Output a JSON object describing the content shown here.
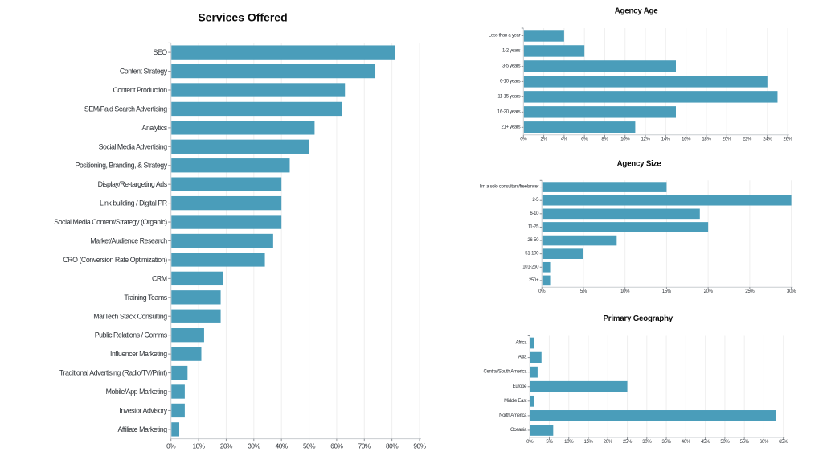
{
  "page": {
    "background": "#ffffff"
  },
  "colors": {
    "bar": "#4a9dba",
    "axis_line": "#c9cdd1",
    "grid_line": "#efefef",
    "tick_mark": "#8b9096",
    "label_text": "#2e3237",
    "title_text": "#0c0c0c"
  },
  "chart_data": [
    {
      "id": "services_offered",
      "type": "bar",
      "orientation": "horizontal",
      "title": "Services Offered",
      "categories": [
        "SEO",
        "Content Strategy",
        "Content Production",
        "SEM/Paid Search Advertising",
        "Analytics",
        "Social Media Advertising",
        "Positioning, Branding, & Strategy",
        "Display/Re-targeting Ads",
        "Link building / Digital PR",
        "Social Media Content/Strategy (Organic)",
        "Market/Audience Research",
        "CRO (Conversion Rate Optimization)",
        "CRM",
        "Training Teams",
        "MarTech Stack Consulting",
        "Public Relations / Comms",
        "Influencer Marketing",
        "Traditional Advertising (Radio/TV/Print)",
        "Mobile/App Marketing",
        "Investor Advisory",
        "Affiliate Marketing"
      ],
      "values": [
        81,
        74,
        63,
        62,
        52,
        50,
        43,
        40,
        40,
        40,
        37,
        34,
        19,
        18,
        18,
        12,
        11,
        6,
        5,
        5,
        3
      ],
      "xlabel": "",
      "ylabel": "",
      "xlim": [
        0,
        90
      ],
      "xtick_step": 10,
      "xtick_suffix": "%",
      "grid": true,
      "legend": false
    },
    {
      "id": "agency_age",
      "type": "bar",
      "orientation": "horizontal",
      "title": "Agency Age",
      "categories": [
        "Less than a year",
        "1-2 years",
        "3-5 years",
        "6-10 years",
        "11-15 years",
        "16-20 years",
        "21+ years"
      ],
      "values": [
        4,
        6,
        15,
        24,
        25,
        15,
        11
      ],
      "xlabel": "",
      "ylabel": "",
      "xlim": [
        0,
        26
      ],
      "xtick_step": 2,
      "xtick_suffix": "%",
      "grid": true,
      "legend": false
    },
    {
      "id": "agency_size",
      "type": "bar",
      "orientation": "horizontal",
      "title": "Agency Size",
      "categories": [
        "I'm a solo consultant/freelancer",
        "2-5",
        "6-10",
        "11-25",
        "26-50",
        "51-100",
        "101-250",
        "250+"
      ],
      "values": [
        15,
        30,
        19,
        20,
        9,
        5,
        1,
        1
      ],
      "xlabel": "",
      "ylabel": "",
      "xlim": [
        0,
        30
      ],
      "xtick_step": 5,
      "xtick_suffix": "%",
      "grid": true,
      "legend": false
    },
    {
      "id": "primary_geography",
      "type": "bar",
      "orientation": "horizontal",
      "title": "Primary Geography",
      "categories": [
        "Africa",
        "Asia",
        "Central/South America",
        "Europe",
        "Middle East",
        "North America",
        "Oceania"
      ],
      "values": [
        1,
        3,
        2,
        25,
        1,
        63,
        6
      ],
      "xlabel": "",
      "ylabel": "",
      "xlim": [
        0,
        65
      ],
      "xtick_step": 5,
      "xtick_suffix": "%",
      "grid": true,
      "legend": false
    }
  ]
}
